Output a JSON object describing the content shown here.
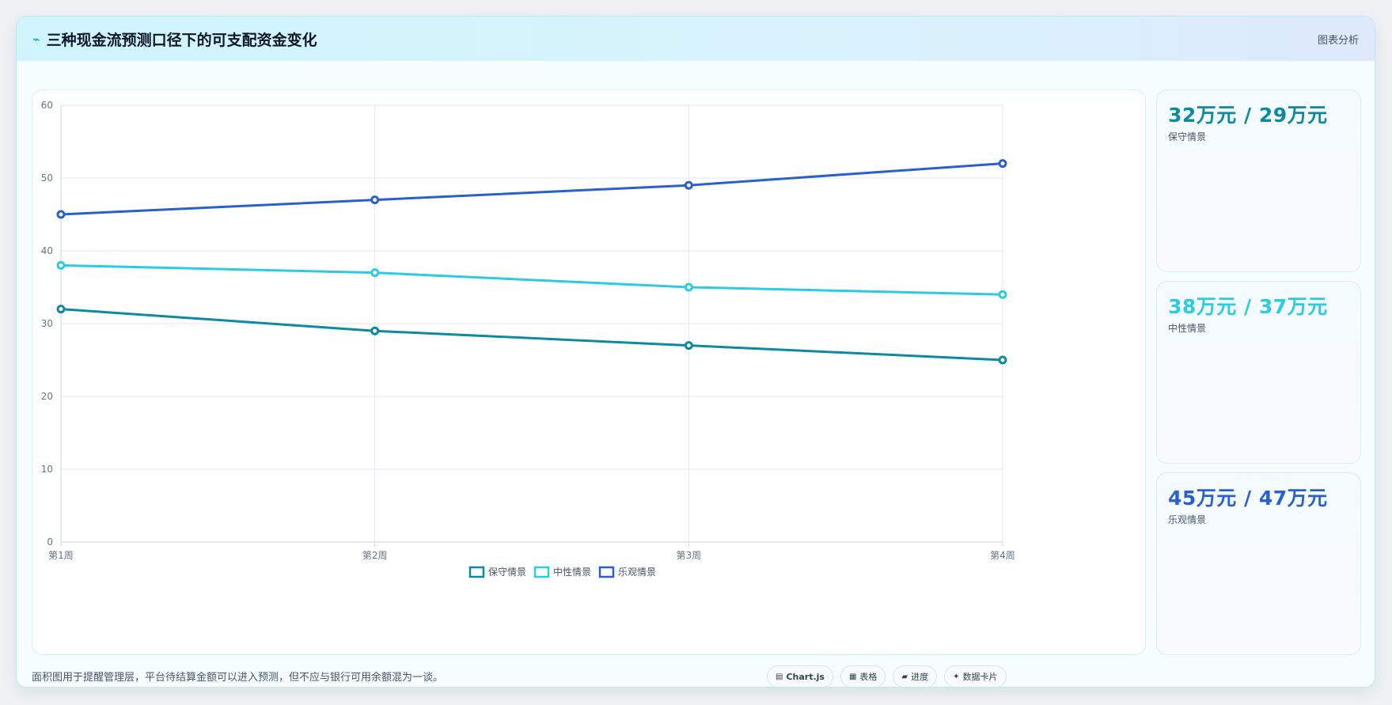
{
  "header": {
    "icon": "⌁",
    "title": "三种现金流预测口径下的可支配资金变化",
    "tag": "图表分析"
  },
  "chart_data": {
    "type": "line",
    "categories": [
      "第1周",
      "第2周",
      "第3周",
      "第4周"
    ],
    "series": [
      {
        "name": "保守情景",
        "values": [
          32,
          29,
          27,
          25
        ],
        "color": "#0e8aa0"
      },
      {
        "name": "中性情景",
        "values": [
          38,
          37,
          35,
          34
        ],
        "color": "#2ccbe0"
      },
      {
        "name": "乐观情景",
        "values": [
          45,
          47,
          49,
          52
        ],
        "color": "#2a5fce"
      }
    ],
    "ylim": [
      0,
      60
    ],
    "yticks": [
      0,
      10,
      20,
      30,
      40,
      50,
      60
    ],
    "grid": true,
    "legend": "bottom",
    "title": "",
    "xlabel": "",
    "ylabel": ""
  },
  "stats": [
    {
      "value": "32万元 / 29万元",
      "label": "保守情景",
      "color": "#0e8aa0"
    },
    {
      "value": "38万元 / 37万元",
      "label": "中性情景",
      "color": "#2ccbe0"
    },
    {
      "value": "45万元 / 47万元",
      "label": "乐观情景",
      "color": "#2a5fce"
    }
  ],
  "footer": {
    "note": "面积图用于提醒管理层，平台待结算金额可以进入预测，但不应与银行可用余额混为一谈。",
    "pills": [
      {
        "icon": "▤",
        "label": "Chart.js",
        "icon_name": "chart-icon"
      },
      {
        "icon": "▦",
        "label": "表格",
        "icon_name": "table-icon"
      },
      {
        "icon": "▰",
        "label": "进度",
        "icon_name": "progress-icon"
      },
      {
        "icon": "✦",
        "label": "数据卡片",
        "icon_name": "sparkle-icon"
      }
    ]
  }
}
